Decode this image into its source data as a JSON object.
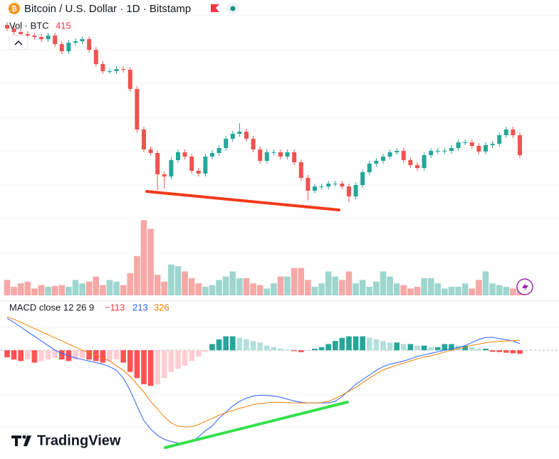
{
  "header": {
    "title": "Bitcoin / U.S. Dollar · 1D · Bitstamp",
    "volume_label": "Vol · BTC",
    "macd_label": "MACD close 12 26 9",
    "macd_histogram_label": "−113",
    "brand": "TradingView"
  },
  "chart_data": {
    "type": "candlestick",
    "open": [
      380,
      375,
      370,
      367,
      365,
      363,
      360,
      365,
      353,
      343,
      355,
      357,
      360,
      345,
      325,
      315,
      315,
      318,
      317,
      290,
      233,
      205,
      200,
      170,
      167,
      190,
      201,
      195,
      175,
      171,
      195,
      200,
      207,
      220,
      227,
      230,
      220,
      205,
      189,
      201,
      201,
      195,
      201,
      187,
      165,
      147,
      153,
      153,
      157,
      157,
      153,
      139,
      155,
      173,
      185,
      189,
      195,
      201,
      203,
      190,
      183,
      179,
      197,
      203,
      203,
      203,
      207,
      215,
      215,
      210,
      202,
      211,
      213,
      225,
      233,
      225
    ],
    "high": [
      384,
      379,
      374,
      371,
      369,
      367,
      369,
      369,
      357,
      359,
      361,
      364,
      364,
      349,
      329,
      319,
      322,
      322,
      321,
      294,
      237,
      209,
      204,
      174,
      194,
      205,
      205,
      199,
      179,
      199,
      204,
      211,
      224,
      231,
      242,
      234,
      224,
      209,
      205,
      205,
      205,
      205,
      205,
      191,
      169,
      157,
      157,
      161,
      161,
      161,
      157,
      159,
      177,
      189,
      193,
      199,
      205,
      207,
      207,
      194,
      187,
      201,
      207,
      207,
      207,
      211,
      219,
      219,
      219,
      214,
      215,
      217,
      229,
      237,
      237,
      229
    ],
    "low": [
      371,
      366,
      363,
      361,
      359,
      356,
      356,
      349,
      339,
      339,
      351,
      353,
      341,
      321,
      311,
      311,
      311,
      313,
      286,
      229,
      201,
      196,
      148,
      150,
      163,
      186,
      191,
      171,
      167,
      167,
      191,
      196,
      203,
      216,
      223,
      216,
      201,
      185,
      185,
      197,
      191,
      191,
      183,
      161,
      133,
      143,
      149,
      149,
      153,
      149,
      131,
      135,
      151,
      169,
      181,
      185,
      191,
      197,
      186,
      179,
      175,
      175,
      193,
      199,
      199,
      199,
      203,
      211,
      206,
      198,
      198,
      207,
      209,
      221,
      221,
      193
    ],
    "close": [
      375,
      370,
      367,
      365,
      363,
      360,
      365,
      353,
      343,
      355,
      357,
      360,
      345,
      325,
      315,
      315,
      318,
      317,
      290,
      233,
      205,
      200,
      170,
      167,
      190,
      201,
      195,
      175,
      171,
      195,
      200,
      207,
      220,
      227,
      230,
      220,
      205,
      189,
      201,
      201,
      195,
      201,
      187,
      165,
      147,
      153,
      153,
      157,
      157,
      153,
      139,
      155,
      173,
      185,
      189,
      195,
      201,
      203,
      190,
      183,
      179,
      197,
      203,
      203,
      203,
      207,
      215,
      215,
      210,
      202,
      211,
      213,
      225,
      233,
      225,
      197
    ],
    "ylim": [
      0,
      415
    ],
    "ygrid": [
      393,
      345,
      298,
      250,
      203,
      155,
      108,
      60
    ],
    "up_color": "#26a69a",
    "down_color": "#ef5350",
    "volume": [
      900,
      500,
      700,
      800,
      400,
      600,
      500,
      550,
      600,
      500,
      900,
      700,
      800,
      1100,
      600,
      900,
      800,
      600,
      1300,
      2300,
      4400,
      3900,
      1200,
      800,
      1800,
      1700,
      1400,
      1000,
      700,
      500,
      600,
      900,
      1100,
      1400,
      1000,
      1000,
      700,
      600,
      400,
      700,
      1100,
      1100,
      1600,
      1600,
      900,
      500,
      700,
      1400,
      1100,
      900,
      1400,
      700,
      900,
      500,
      800,
      1400,
      1100,
      700,
      600,
      400,
      500,
      1000,
      1000,
      700,
      400,
      500,
      500,
      700,
      400,
      900,
      1400,
      700,
      600,
      500,
      400,
      415
    ],
    "volume_lim": [
      0,
      5000
    ],
    "volume_up_color": "#9ed6cf",
    "volume_down_color": "#f5a8a6",
    "macd": {
      "histogram": [
        -230,
        -300,
        -350,
        -300,
        -400,
        -350,
        -300,
        -250,
        -300,
        -350,
        -300,
        -250,
        -300,
        -350,
        -400,
        -350,
        -300,
        -400,
        -700,
        -900,
        -1100,
        -1150,
        -1100,
        -900,
        -700,
        -600,
        -500,
        -350,
        -200,
        -50,
        200,
        350,
        450,
        450,
        400,
        350,
        300,
        250,
        150,
        100,
        50,
        20,
        -30,
        -60,
        -20,
        50,
        100,
        200,
        300,
        400,
        450,
        450,
        450,
        400,
        350,
        300,
        250,
        250,
        200,
        200,
        150,
        150,
        100,
        100,
        200,
        200,
        150,
        150,
        100,
        50,
        50,
        -50,
        -60,
        -80,
        -100,
        -113
      ],
      "macd": [
        1035,
        900,
        750,
        600,
        450,
        300,
        150,
        0,
        -100,
        -180,
        -250,
        -300,
        -350,
        -400,
        -450,
        -530,
        -650,
        -900,
        -1300,
        -1800,
        -2270,
        -2550,
        -2750,
        -2880,
        -2950,
        -3000,
        -3000,
        -2950,
        -2800,
        -2600,
        -2450,
        -2200,
        -2000,
        -1800,
        -1650,
        -1550,
        -1480,
        -1450,
        -1460,
        -1480,
        -1520,
        -1580,
        -1640,
        -1680,
        -1700,
        -1700,
        -1700,
        -1700,
        -1650,
        -1500,
        -1300,
        -1100,
        -950,
        -800,
        -650,
        -530,
        -450,
        -400,
        -350,
        -280,
        -200,
        -150,
        -100,
        -50,
        0,
        50,
        90,
        150,
        250,
        350,
        410,
        420,
        380,
        340,
        300,
        213
      ],
      "signal": [
        1080,
        1000,
        900,
        800,
        700,
        600,
        500,
        400,
        300,
        200,
        100,
        0,
        -70,
        -150,
        -250,
        -350,
        -500,
        -650,
        -850,
        -1100,
        -1350,
        -1650,
        -1900,
        -2150,
        -2350,
        -2450,
        -2480,
        -2470,
        -2400,
        -2300,
        -2200,
        -2100,
        -2020,
        -1950,
        -1880,
        -1820,
        -1760,
        -1720,
        -1700,
        -1680,
        -1680,
        -1690,
        -1700,
        -1700,
        -1700,
        -1700,
        -1690,
        -1650,
        -1560,
        -1450,
        -1330,
        -1200,
        -1050,
        -900,
        -760,
        -640,
        -560,
        -480,
        -420,
        -350,
        -280,
        -220,
        -180,
        -120,
        -60,
        0,
        50,
        100,
        160,
        200,
        240,
        270,
        290,
        300,
        310,
        326
      ],
      "ylim": [
        -3400,
        1200
      ],
      "ygrid": [
        736,
        -1449,
        -2484
      ],
      "macd_color": "#2962ff",
      "signal_color": "#f57c00",
      "colors": {
        "pos_up": "#26a69a",
        "pos_down": "#b2dfdb",
        "neg_down": "#ff5252",
        "neg_up": "#ffcdd2"
      }
    }
  }
}
